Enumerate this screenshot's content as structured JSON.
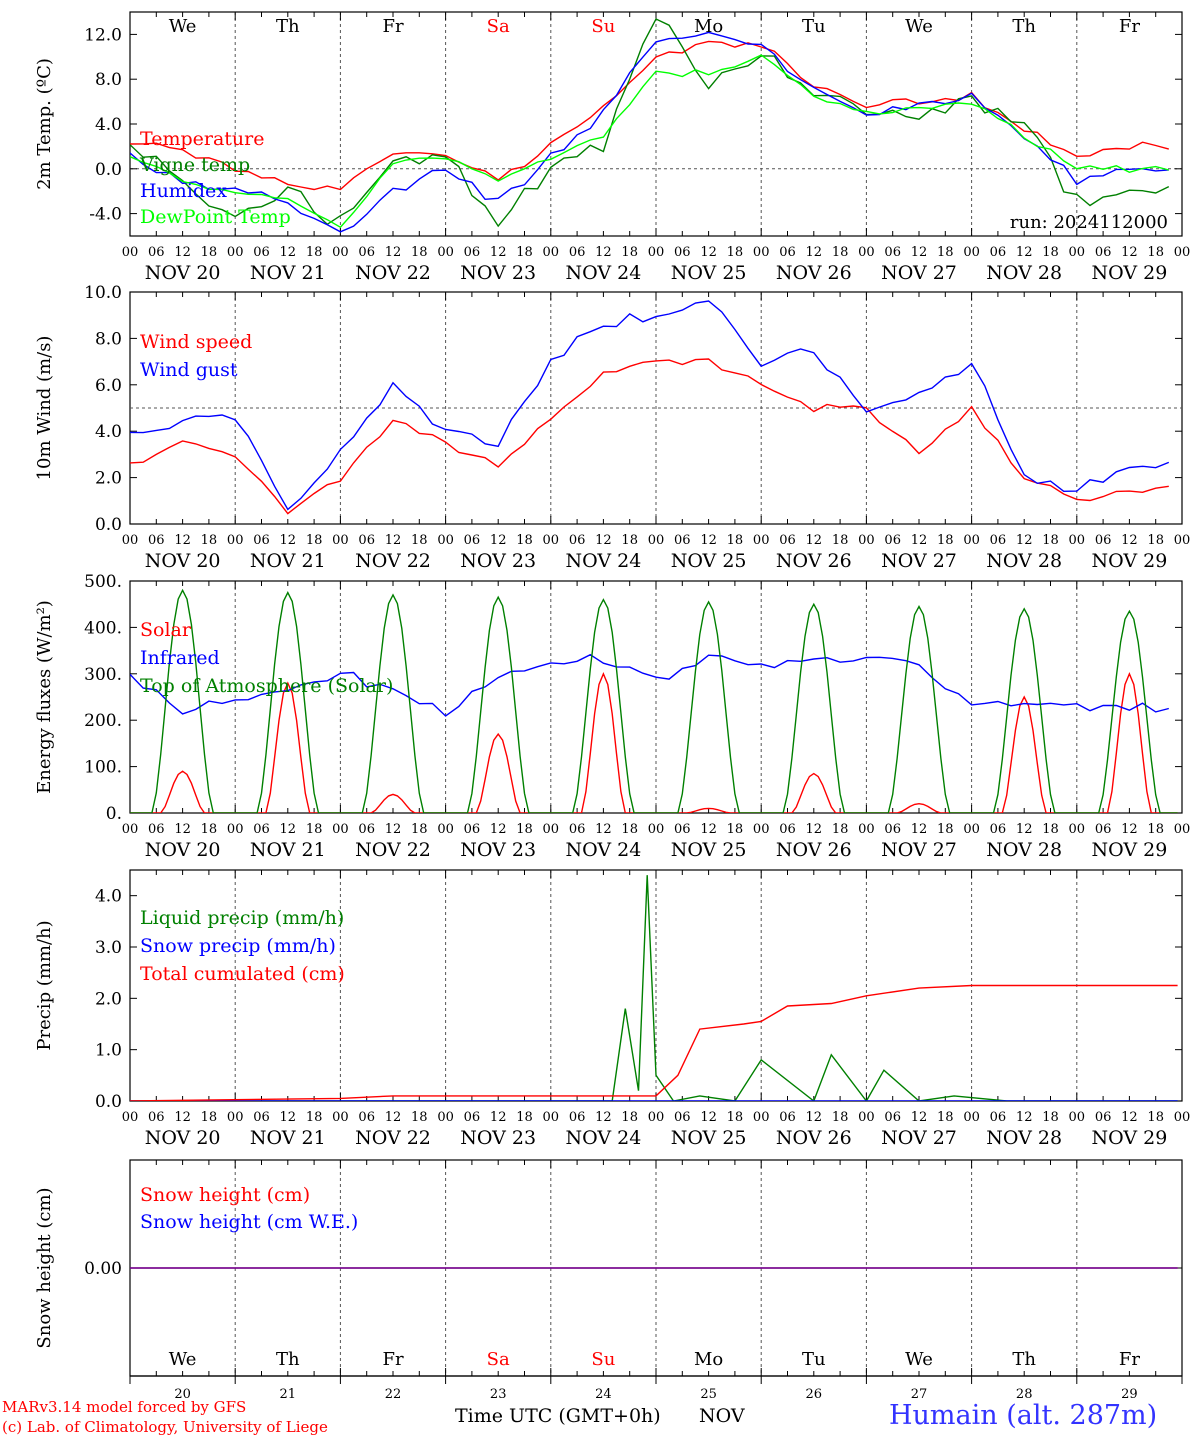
{
  "meteogram": {
    "run_label": "run: 2024112000",
    "x_axis_title": "Time UTC (GMT+0h)",
    "month_label": "NOV",
    "hour_ticks": [
      "00",
      "06",
      "12",
      "18"
    ],
    "date_labels": [
      "NOV 20",
      "NOV 21",
      "NOV 22",
      "NOV 23",
      "NOV 24",
      "NOV 25",
      "NOV 26",
      "NOV 27",
      "NOV 28",
      "NOV 29"
    ],
    "day_numbers": [
      "20",
      "21",
      "22",
      "23",
      "24",
      "25",
      "26",
      "27",
      "28",
      "29"
    ],
    "weekdays": [
      "We",
      "Th",
      "Fr",
      "Sa",
      "Su",
      "Mo",
      "Tu",
      "We",
      "Th",
      "Fr"
    ],
    "weekend_indices": [
      3,
      4
    ],
    "credits": [
      "MARv3.14 model forced by GFS",
      "(c) Lab. of Climatology, University of Liege"
    ],
    "station_label": "Humain (alt. 287m)"
  },
  "chart_data": [
    {
      "type": "line",
      "ylabel": "2m Temp. (ºC)",
      "ylim": [
        -6,
        14
      ],
      "yticks": [
        -4,
        0,
        4,
        8,
        12
      ],
      "ytick_labels": [
        "-4.0",
        "0.0",
        "4.0",
        "8.0",
        "12.0"
      ],
      "ref_line": 0,
      "x_unit": "hours since NOV 20 00 UTC",
      "series": [
        {
          "name": "Temperature",
          "color": "#ff0000",
          "x": [
            0,
            12,
            24,
            36,
            48,
            60,
            72,
            84,
            96,
            108,
            120,
            132,
            144,
            156,
            168,
            180,
            192,
            204,
            216,
            228
          ],
          "values": [
            2.5,
            1.5,
            0,
            -1.5,
            -2,
            1.5,
            1.5,
            -1,
            2,
            5.5,
            10,
            11,
            11,
            7.5,
            5.5,
            6,
            6.5,
            3.5,
            1,
            2
          ]
        },
        {
          "name": "Vigne temp",
          "color": "#008000",
          "x": [
            0,
            12,
            24,
            36,
            48,
            60,
            72,
            84,
            96,
            108,
            120,
            132,
            144,
            156,
            168,
            180,
            192,
            204,
            216,
            228
          ],
          "values": [
            2,
            -1,
            -4,
            -2,
            -5,
            1,
            1,
            -5,
            0,
            2,
            14,
            7.5,
            10,
            7,
            5,
            5,
            6,
            4,
            -3,
            -2
          ]
        },
        {
          "name": "Humidex",
          "color": "#0000ff",
          "x": [
            0,
            12,
            24,
            36,
            48,
            60,
            72,
            84,
            96,
            108,
            120,
            132,
            144,
            156,
            168,
            180,
            192,
            204,
            216,
            228
          ],
          "values": [
            1,
            -1,
            -2,
            -3,
            -6,
            -2,
            0,
            -3,
            1,
            5,
            11.5,
            12,
            11,
            7,
            5,
            5.5,
            6.5,
            3,
            -1,
            0
          ]
        },
        {
          "name": "DewPoint Temp",
          "color": "#00ff00",
          "x": [
            0,
            12,
            24,
            36,
            48,
            60,
            72,
            84,
            96,
            108,
            120,
            132,
            144,
            156,
            168,
            180,
            192,
            204,
            216,
            228
          ],
          "values": [
            1,
            -1,
            -2,
            -3,
            -5,
            0.5,
            1,
            -1,
            1,
            3,
            8.5,
            8.5,
            10,
            6.5,
            5,
            5.5,
            6,
            3,
            0,
            0
          ]
        }
      ]
    },
    {
      "type": "line",
      "ylabel": "10m Wind (m/s)",
      "ylim": [
        0,
        10
      ],
      "yticks": [
        0,
        2,
        4,
        6,
        8,
        10
      ],
      "ytick_labels": [
        "0.0",
        "2.0",
        "4.0",
        "6.0",
        "8.0",
        "10.0"
      ],
      "ref_line": 5,
      "x_unit": "hours since NOV 20 00 UTC",
      "series": [
        {
          "name": "Wind speed",
          "color": "#ff0000",
          "x": [
            0,
            12,
            24,
            36,
            48,
            60,
            72,
            84,
            96,
            108,
            120,
            132,
            144,
            156,
            168,
            180,
            192,
            204,
            216,
            228
          ],
          "values": [
            2.5,
            3.5,
            3,
            0.5,
            2,
            4.5,
            3.5,
            2.5,
            4.5,
            6.5,
            7,
            7,
            6,
            5,
            5,
            3,
            5,
            2,
            1,
            1.5
          ]
        },
        {
          "name": "Wind gust",
          "color": "#0000ff",
          "x": [
            0,
            12,
            24,
            36,
            48,
            60,
            72,
            84,
            96,
            108,
            120,
            132,
            144,
            156,
            168,
            180,
            192,
            204,
            216,
            228
          ],
          "values": [
            4,
            4.5,
            4.5,
            0.8,
            3,
            6,
            4,
            3.5,
            7,
            8.5,
            9,
            9.5,
            7,
            7.5,
            5,
            5.5,
            7,
            2,
            1.5,
            2.5
          ]
        }
      ]
    },
    {
      "type": "line",
      "ylabel": "Energy fluxes (W/m²)",
      "ylim": [
        0,
        500
      ],
      "yticks": [
        0,
        100,
        200,
        300,
        400,
        500
      ],
      "ytick_labels": [
        "0.",
        "100.",
        "200.",
        "300.",
        "400.",
        "500."
      ],
      "x_unit": "hours since NOV 20 00 UTC",
      "series": [
        {
          "name": "Solar",
          "color": "#ff0000",
          "peak_hour": 12,
          "values_daily_peak": [
            90,
            280,
            40,
            170,
            300,
            10,
            85,
            20,
            250,
            300
          ]
        },
        {
          "name": "Infrared",
          "color": "#0000ff",
          "x": [
            0,
            12,
            24,
            36,
            48,
            60,
            72,
            84,
            96,
            108,
            120,
            132,
            144,
            156,
            168,
            180,
            192,
            204,
            216,
            228
          ],
          "values": [
            300,
            220,
            240,
            270,
            300,
            260,
            220,
            290,
            330,
            330,
            285,
            340,
            320,
            330,
            330,
            320,
            240,
            230,
            230,
            230
          ]
        },
        {
          "name": "Top of Atmosphere (Solar)",
          "color": "#008000",
          "peak_hour": 12,
          "values_daily_peak": [
            480,
            475,
            470,
            465,
            460,
            455,
            450,
            445,
            440,
            435
          ]
        }
      ]
    },
    {
      "type": "line",
      "ylabel": "Precip (mm/h)",
      "ylim": [
        0,
        4.5
      ],
      "yticks": [
        0,
        1,
        2,
        3,
        4
      ],
      "ytick_labels": [
        "0.0",
        "1.0",
        "2.0",
        "3.0",
        "4.0"
      ],
      "x_unit": "hours since NOV 20 00 UTC",
      "series": [
        {
          "name": "Liquid precip (mm/h)",
          "color": "#008000",
          "x": [
            0,
            100,
            110,
            113,
            116,
            118,
            120,
            124,
            130,
            138,
            144,
            156,
            160,
            168,
            172,
            180,
            188,
            200,
            239
          ],
          "values": [
            0,
            0,
            0,
            1.8,
            0.2,
            4.4,
            0.5,
            0,
            0.1,
            0,
            0.8,
            0,
            0.9,
            0,
            0.6,
            0,
            0.1,
            0,
            0
          ]
        },
        {
          "name": "Snow precip (mm/h)",
          "color": "#0000ff",
          "x": [
            0,
            239
          ],
          "values": [
            0,
            0
          ]
        },
        {
          "name": "Total cumulated (cm)",
          "color": "#ff0000",
          "x": [
            0,
            48,
            60,
            120,
            125,
            130,
            140,
            144,
            150,
            160,
            168,
            180,
            192,
            239
          ],
          "values": [
            0,
            0.05,
            0.1,
            0.1,
            0.5,
            1.4,
            1.5,
            1.55,
            1.85,
            1.9,
            2.05,
            2.2,
            2.25,
            2.25
          ]
        }
      ]
    },
    {
      "type": "line",
      "ylabel": "Snow height (cm)",
      "ylim": [
        -1,
        1
      ],
      "yticks": [
        0
      ],
      "ytick_labels": [
        "0.00"
      ],
      "x_unit": "hours since NOV 20 00 UTC",
      "series": [
        {
          "name": "Snow height (cm)",
          "color": "#ff0000",
          "x": [
            0,
            239
          ],
          "values": [
            0,
            0
          ]
        },
        {
          "name": "Snow height (cm W.E.)",
          "color": "#0000ff",
          "x": [
            0,
            239
          ],
          "values": [
            0,
            0
          ]
        }
      ]
    }
  ]
}
